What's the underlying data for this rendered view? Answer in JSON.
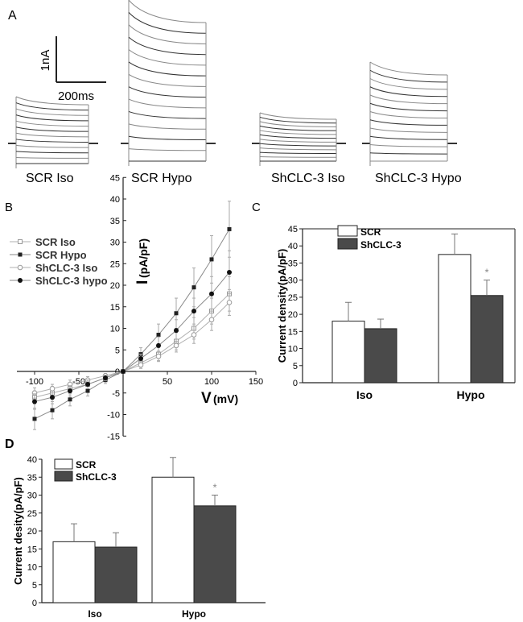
{
  "panel_labels": {
    "a": "A",
    "b": "B",
    "c": "C",
    "d": "D"
  },
  "colors": {
    "axis": "#222222",
    "trace": "#333333",
    "trace_light": "#888888",
    "bar_scr": "#ffffff",
    "bar_sh": "#4a4a4a",
    "grey_line": "#9a9a9a",
    "star": "#888888"
  },
  "scale_bar": {
    "vertical_label": "1nA",
    "horizontal_label": "200ms"
  },
  "traces": [
    {
      "label": "SCR Iso"
    },
    {
      "label": "SCR Hypo"
    },
    {
      "label": "ShCLC-3 Iso"
    },
    {
      "label": "ShCLC-3 Hypo"
    }
  ],
  "chart_data": [
    {
      "id": "B",
      "type": "line",
      "xlabel": "V",
      "xlabel_unit": "(mV)",
      "ylabel": "I",
      "ylabel_unit": "(pA/pF)",
      "xlim": [
        -120,
        150
      ],
      "ylim": [
        -15,
        45
      ],
      "xticks": [
        -100,
        -50,
        0,
        50,
        100,
        150
      ],
      "yticks": [
        -15,
        -10,
        -5,
        0,
        5,
        10,
        15,
        20,
        25,
        30,
        35,
        40,
        45
      ],
      "x": [
        -100,
        -80,
        -60,
        -40,
        -20,
        0,
        20,
        40,
        60,
        80,
        100,
        120
      ],
      "series": [
        {
          "name": "SCR Iso",
          "marker": "open-square",
          "values": [
            -6,
            -5,
            -4,
            -3,
            -1.5,
            0,
            2,
            4,
            7,
            10,
            14,
            18
          ],
          "errors": [
            1.5,
            1.5,
            1.2,
            1,
            0.8,
            0,
            1,
            1.5,
            2,
            2.5,
            3,
            4
          ]
        },
        {
          "name": "SCR Hypo",
          "marker": "filled-square",
          "values": [
            -11,
            -9,
            -6.5,
            -4.5,
            -2,
            0,
            4,
            8.5,
            13.5,
            19.5,
            26,
            33
          ],
          "errors": [
            2.5,
            2,
            1.5,
            1.2,
            0.8,
            0,
            1.5,
            2.5,
            3.5,
            4.5,
            5.5,
            6.5
          ]
        },
        {
          "name": "ShCLC-3 Iso",
          "marker": "open-circle",
          "values": [
            -5,
            -4,
            -3,
            -2,
            -1,
            0,
            1.5,
            3.5,
            6,
            8.5,
            12,
            16
          ],
          "errors": [
            1.2,
            1,
            1,
            0.8,
            0.5,
            0,
            0.8,
            1.2,
            1.5,
            2,
            2.5,
            3
          ]
        },
        {
          "name": "ShCLC-3 hypo",
          "marker": "filled-circle",
          "values": [
            -7,
            -6,
            -4.5,
            -3,
            -1.5,
            0,
            3,
            6,
            9.5,
            14,
            18,
            23
          ],
          "errors": [
            1.8,
            1.5,
            1.2,
            1,
            0.6,
            0,
            1,
            2,
            2.5,
            3,
            4,
            5
          ]
        }
      ]
    },
    {
      "id": "C",
      "type": "bar",
      "ylabel": "Current density(pA/pF)",
      "ylim": [
        0,
        45
      ],
      "yticks": [
        0,
        5,
        10,
        15,
        20,
        25,
        30,
        35,
        40,
        45
      ],
      "categories": [
        "Iso",
        "Hypo"
      ],
      "series": [
        {
          "name": "SCR",
          "values": [
            18,
            37.5
          ],
          "errors": [
            5.5,
            6
          ]
        },
        {
          "name": "ShCLC-3",
          "values": [
            15.8,
            25.5
          ],
          "errors": [
            2.8,
            4.5
          ]
        }
      ],
      "annotation": "*"
    },
    {
      "id": "D",
      "type": "bar",
      "ylabel": "Current desity(pA/pF)",
      "ylim": [
        0,
        40
      ],
      "yticks": [
        0,
        5,
        10,
        15,
        20,
        25,
        30,
        35,
        40
      ],
      "categories": [
        "Iso",
        "Hypo"
      ],
      "series": [
        {
          "name": "SCR",
          "values": [
            17,
            35
          ],
          "errors": [
            5,
            5.5
          ]
        },
        {
          "name": "ShCLC-3",
          "values": [
            15.5,
            27
          ],
          "errors": [
            4,
            3
          ]
        }
      ],
      "annotation": "*"
    }
  ]
}
